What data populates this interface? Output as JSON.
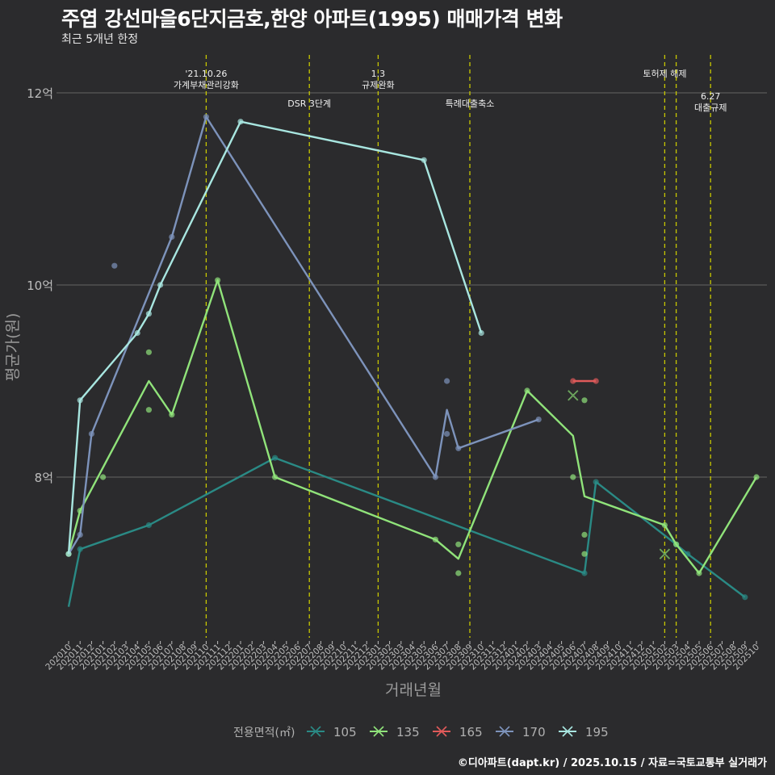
{
  "header": {
    "title": "주엽 강선마을6단지금호,한양 아파트(1995) 매매가격 변화",
    "subtitle": "최근 5개년 한정"
  },
  "footer": {
    "caption": "©디아파트(dapt.kr) / 2025.10.15 / 자료=국토교통부 실거래가"
  },
  "colors": {
    "background": "#2b2b2d",
    "grid": "#5a5a5a",
    "event_line": "#c8c800",
    "axis_text": "#bdbdbd",
    "s105": "#2a8a85",
    "s135": "#90e37a",
    "s165": "#e05a5a",
    "s170": "#7d93bb",
    "s195": "#a8e6e0"
  },
  "chart_data": {
    "type": "line",
    "xlabel": "거래년월",
    "ylabel": "평균가(원)",
    "ylim": [
      6.25,
      12.6
    ],
    "y_ticks": [
      {
        "value": 8,
        "label": "8억"
      },
      {
        "value": 10,
        "label": "10억"
      },
      {
        "value": 12,
        "label": "12억"
      }
    ],
    "x_categories": [
      "202010",
      "202011",
      "202012",
      "202101",
      "202102",
      "202103",
      "202104",
      "202105",
      "202106",
      "202107",
      "202108",
      "202109",
      "202110",
      "202111",
      "202112",
      "202201",
      "202202",
      "202203",
      "202204",
      "202205",
      "202206",
      "202207",
      "202208",
      "202209",
      "202210",
      "202211",
      "202212",
      "202301",
      "202302",
      "202303",
      "202304",
      "202305",
      "202306",
      "202307",
      "202308",
      "202309",
      "202310",
      "202311",
      "202312",
      "202401",
      "202402",
      "202403",
      "202404",
      "202405",
      "202406",
      "202407",
      "202408",
      "202409",
      "202410",
      "202411",
      "202412",
      "202501",
      "202502",
      "202503",
      "202504",
      "202505",
      "202506",
      "202507",
      "202508",
      "202509",
      "202510"
    ],
    "events": [
      {
        "x": "202110",
        "lines": [
          "'21.10.26",
          "가계부채관리강화"
        ],
        "row": 0
      },
      {
        "x": "202207",
        "lines": [
          "DSR 3단계"
        ],
        "row": 1
      },
      {
        "x": "202301",
        "lines": [
          "1.3",
          "규제완화"
        ],
        "row": 0
      },
      {
        "x": "202309",
        "lines": [
          "특례대출축소"
        ],
        "row": 1
      },
      {
        "x": "202502",
        "lines": [
          "토허제 해제"
        ],
        "row": 0
      },
      {
        "x": "202503",
        "lines": [],
        "row": 0
      },
      {
        "x": "202506",
        "lines": [
          "6.27",
          "대출규제"
        ],
        "row": 2
      }
    ],
    "legend": {
      "title": "전용면적(㎡)",
      "position": "bottom"
    },
    "series": [
      {
        "name": "105",
        "color_key": "s105",
        "line": [
          [
            "202010",
            6.65
          ],
          [
            "202011",
            7.25
          ],
          [
            "202105",
            7.5
          ],
          [
            "202204",
            8.2
          ],
          [
            "202407",
            7.0
          ],
          [
            "202408",
            7.95
          ],
          [
            "202503",
            7.3
          ],
          [
            "202504",
            7.2
          ],
          [
            "202509",
            6.75
          ]
        ],
        "points": [
          [
            "202011",
            7.25
          ],
          [
            "202105",
            7.5
          ],
          [
            "202204",
            8.2
          ],
          [
            "202407",
            7.0
          ],
          [
            "202408",
            7.95
          ],
          [
            "202503",
            7.3
          ],
          [
            "202504",
            7.2
          ],
          [
            "202509",
            6.75
          ]
        ]
      },
      {
        "name": "135",
        "color_key": "s135",
        "line": [
          [
            "202010",
            7.2
          ],
          [
            "202011",
            7.65
          ],
          [
            "202105",
            9.0
          ],
          [
            "202107",
            8.65
          ],
          [
            "202111",
            10.05
          ],
          [
            "202204",
            8.0
          ],
          [
            "202306",
            7.35
          ],
          [
            "202308",
            7.15
          ],
          [
            "202402",
            8.9
          ],
          [
            "202406",
            8.43
          ],
          [
            "202407",
            7.8
          ],
          [
            "202502",
            7.5
          ],
          [
            "202503",
            7.3
          ],
          [
            "202505",
            7.0
          ],
          [
            "202510",
            8.0
          ]
        ],
        "points": [
          [
            "202010",
            7.2
          ],
          [
            "202011",
            7.65
          ],
          [
            "202101",
            8.0
          ],
          [
            "202105",
            9.3
          ],
          [
            "202105",
            8.7
          ],
          [
            "202107",
            8.65
          ],
          [
            "202111",
            10.05
          ],
          [
            "202204",
            8.0
          ],
          [
            "202306",
            7.35
          ],
          [
            "202308",
            7.3
          ],
          [
            "202308",
            7.0
          ],
          [
            "202402",
            8.9
          ],
          [
            "202406",
            8.0
          ],
          [
            "202407",
            8.8
          ],
          [
            "202407",
            7.4
          ],
          [
            "202407",
            7.2
          ],
          [
            "202502",
            7.5
          ],
          [
            "202503",
            7.3
          ],
          [
            "202505",
            7.0
          ],
          [
            "202510",
            8.0
          ]
        ],
        "crosses": [
          [
            "202406",
            8.85
          ],
          [
            "202502",
            7.2
          ]
        ]
      },
      {
        "name": "165",
        "color_key": "s165",
        "line": [
          [
            "202406",
            9.0
          ],
          [
            "202408",
            9.0
          ]
        ],
        "points": [
          [
            "202406",
            9.0
          ],
          [
            "202408",
            9.0
          ]
        ]
      },
      {
        "name": "170",
        "color_key": "s170",
        "line": [
          [
            "202010",
            7.2
          ],
          [
            "202011",
            7.4
          ],
          [
            "202012",
            8.45
          ],
          [
            "202107",
            10.5
          ],
          [
            "202110",
            11.75
          ],
          [
            "202306",
            8.0
          ],
          [
            "202307",
            8.7
          ],
          [
            "202308",
            8.3
          ],
          [
            "202403",
            8.6
          ]
        ],
        "points": [
          [
            "202011",
            7.4
          ],
          [
            "202012",
            8.45
          ],
          [
            "202102",
            10.2
          ],
          [
            "202107",
            10.5
          ],
          [
            "202110",
            11.75
          ],
          [
            "202306",
            8.0
          ],
          [
            "202307",
            9.0
          ],
          [
            "202307",
            8.45
          ],
          [
            "202308",
            8.3
          ],
          [
            "202403",
            8.6
          ]
        ]
      },
      {
        "name": "195",
        "color_key": "s195",
        "line": [
          [
            "202010",
            7.2
          ],
          [
            "202011",
            8.8
          ],
          [
            "202104",
            9.5
          ],
          [
            "202105",
            9.7
          ],
          [
            "202106",
            10.0
          ],
          [
            "202201",
            11.7
          ],
          [
            "202305",
            11.3
          ],
          [
            "202310",
            9.5
          ]
        ],
        "points": [
          [
            "202010",
            7.2
          ],
          [
            "202011",
            8.8
          ],
          [
            "202104",
            9.5
          ],
          [
            "202105",
            9.7
          ],
          [
            "202106",
            10.0
          ],
          [
            "202201",
            11.7
          ],
          [
            "202305",
            11.3
          ],
          [
            "202310",
            9.5
          ]
        ]
      }
    ]
  }
}
